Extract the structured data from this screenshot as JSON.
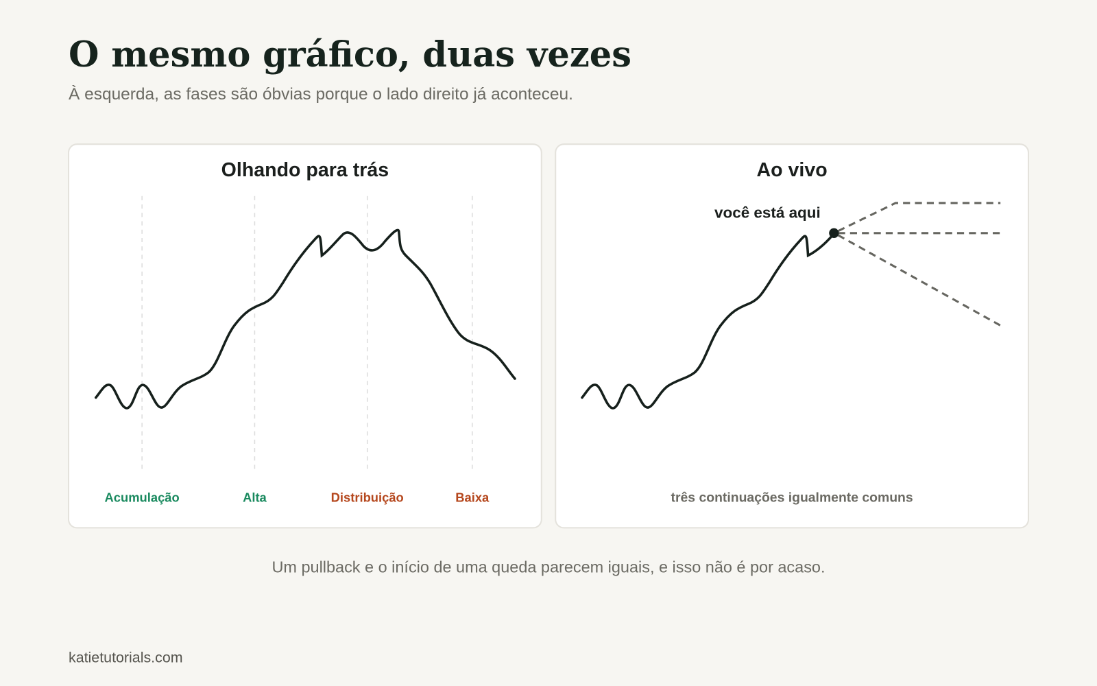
{
  "header": {
    "title": "O mesmo gráfico, duas vezes",
    "subtitle": "À esquerda, as fases são óbvias porque o lado direito já aconteceu."
  },
  "panels": [
    {
      "title": "Olhando para trás",
      "phases": [
        "Acumulação",
        "Alta",
        "Distribuição",
        "Baixa"
      ]
    },
    {
      "title": "Ao vivo",
      "marker": "você está aqui",
      "note": "três continuações igualmente comuns"
    }
  ],
  "caption": "Um pullback e o início de uma queda parecem iguais, e isso não é por acaso.",
  "footer": "katietutorials.com"
}
